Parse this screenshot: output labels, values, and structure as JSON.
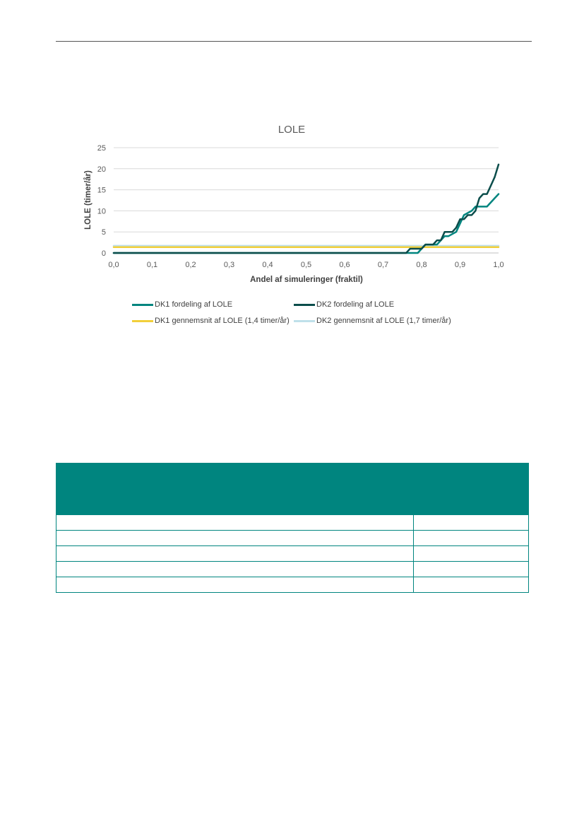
{
  "chart_data": {
    "type": "line",
    "title": "LOLE",
    "xlabel": "Andel af simuleringer (fraktil)",
    "ylabel": "LOLE  (timer/år)",
    "xlim": [
      0.0,
      1.0
    ],
    "ylim": [
      0,
      25
    ],
    "x_ticks": [
      "0,0",
      "0,1",
      "0,2",
      "0,3",
      "0,4",
      "0,5",
      "0,6",
      "0,7",
      "0,8",
      "0,9",
      "1,0"
    ],
    "y_ticks": [
      "0",
      "5",
      "10",
      "15",
      "20",
      "25"
    ],
    "grid": "horizontal",
    "legend_position": "bottom",
    "series": [
      {
        "name": "DK1 fordeling af LOLE",
        "color": "#00857f",
        "width": 2.5,
        "points": [
          [
            0.0,
            0
          ],
          [
            0.79,
            0
          ],
          [
            0.8,
            1
          ],
          [
            0.81,
            2
          ],
          [
            0.84,
            2
          ],
          [
            0.86,
            4
          ],
          [
            0.87,
            4
          ],
          [
            0.89,
            5
          ],
          [
            0.9,
            7
          ],
          [
            0.91,
            9
          ],
          [
            0.93,
            10
          ],
          [
            0.94,
            11
          ],
          [
            0.97,
            11
          ],
          [
            0.99,
            13
          ],
          [
            1.0,
            14
          ]
        ]
      },
      {
        "name": "DK2 fordeling af LOLE",
        "color": "#0b4d4b",
        "width": 2.5,
        "points": [
          [
            0.0,
            0
          ],
          [
            0.76,
            0
          ],
          [
            0.77,
            1
          ],
          [
            0.8,
            1
          ],
          [
            0.81,
            2
          ],
          [
            0.83,
            2
          ],
          [
            0.84,
            3
          ],
          [
            0.85,
            3
          ],
          [
            0.86,
            5
          ],
          [
            0.88,
            5
          ],
          [
            0.89,
            6
          ],
          [
            0.9,
            8
          ],
          [
            0.91,
            8
          ],
          [
            0.92,
            9
          ],
          [
            0.93,
            9
          ],
          [
            0.94,
            10
          ],
          [
            0.95,
            13
          ],
          [
            0.96,
            14
          ],
          [
            0.97,
            14
          ],
          [
            0.98,
            16
          ],
          [
            0.99,
            18
          ],
          [
            1.0,
            21
          ]
        ]
      },
      {
        "name": "DK1 gennemsnit af LOLE (1,4 timer/år)",
        "color": "#f2cf3a",
        "width": 2.5,
        "points": [
          [
            0.0,
            1.4
          ],
          [
            1.0,
            1.4
          ]
        ]
      },
      {
        "name": "DK2 gennemsnit af LOLE (1,7 timer/år)",
        "color": "#bfe0ea",
        "width": 2.5,
        "points": [
          [
            0.0,
            1.7
          ],
          [
            1.0,
            1.7
          ]
        ]
      }
    ]
  },
  "colors": {
    "table_header": "#00857f",
    "gridline": "#d9d9d9",
    "axis_text": "#595959"
  },
  "table": {
    "rows": 5
  }
}
